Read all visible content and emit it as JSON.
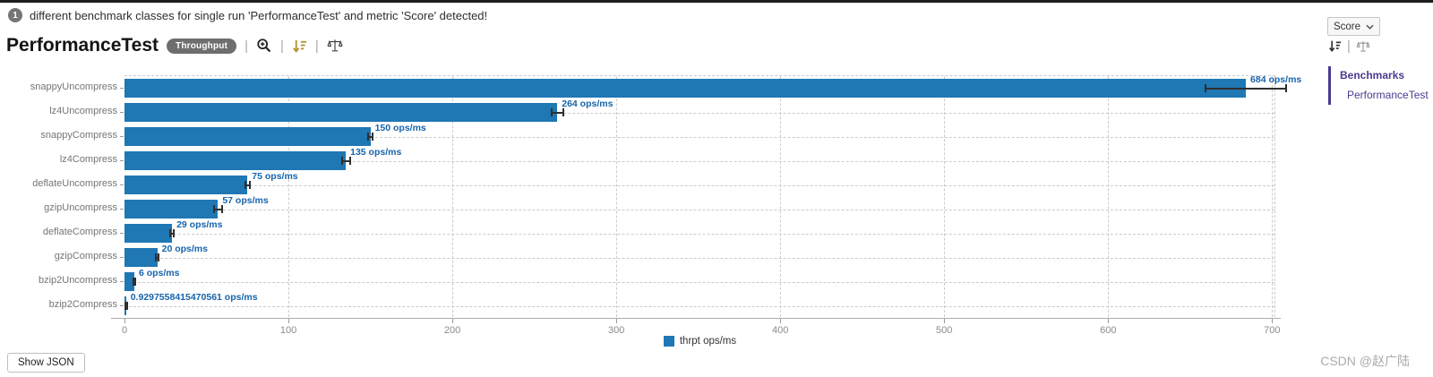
{
  "notification": {
    "count": "1",
    "text": "different benchmark classes for single run 'PerformanceTest' and metric 'Score' detected!"
  },
  "header": {
    "title": "PerformanceTest",
    "mode_badge": "Throughput"
  },
  "controls": {
    "metric_select_value": "Score"
  },
  "sidebar": {
    "heading": "Benchmarks",
    "items": [
      {
        "label": "PerformanceTest"
      }
    ]
  },
  "chart_data": {
    "type": "bar",
    "orientation": "horizontal",
    "categories": [
      "snappyUncompress",
      "lz4Uncompress",
      "snappyCompress",
      "lz4Compress",
      "deflateUncompress",
      "gzipUncompress",
      "deflateCompress",
      "gzipCompress",
      "bzip2Uncompress",
      "bzip2Compress"
    ],
    "values": [
      684,
      264,
      150,
      135,
      75,
      57,
      29,
      20,
      6,
      0.9297558415470561
    ],
    "value_labels": [
      "684 ops/ms",
      "264 ops/ms",
      "150 ops/ms",
      "135 ops/ms",
      "75 ops/ms",
      "57 ops/ms",
      "29 ops/ms",
      "20 ops/ms",
      "6 ops/ms",
      "0.9297558415470561 ops/ms"
    ],
    "errors": [
      25,
      4,
      2,
      3,
      2,
      3,
      1.5,
      1.2,
      0.8,
      0.08
    ],
    "xticks": [
      0,
      100,
      200,
      300,
      400,
      500,
      600,
      700
    ],
    "xmax": 702,
    "xlabel": "",
    "ylabel": "",
    "grid": true,
    "legend_label": "thrpt ops/ms",
    "legend_position": "bottom-center",
    "units": "ops/ms"
  },
  "footer": {
    "show_json_label": "Show JSON",
    "watermark": "CSDN @赵广陆"
  },
  "colors": {
    "bar_blue": "#1f77b4",
    "value_label_blue": "#1764ab",
    "accent_purple": "#4c3a8e",
    "icon_gold": "#b5952f",
    "badge_gray": "#6e6e6e"
  }
}
